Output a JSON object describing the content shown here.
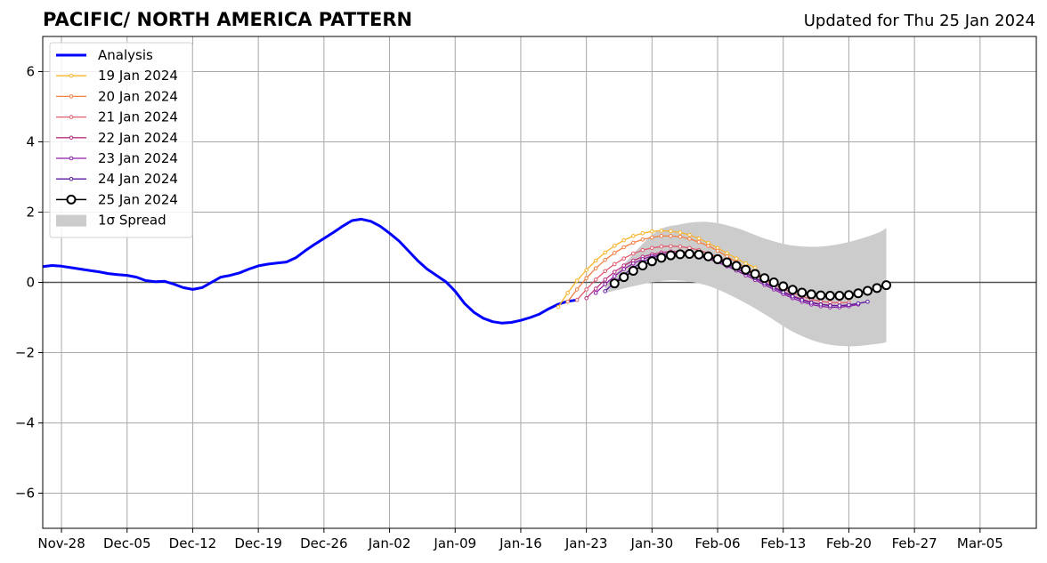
{
  "chart_data": {
    "type": "line",
    "title": "PACIFIC/ NORTH AMERICA PATTERN",
    "subtitle": "Updated for Thu 25 Jan 2024",
    "xlim": [
      "2023-11-26",
      "2024-03-11"
    ],
    "ylim": [
      -7,
      7
    ],
    "yticks": [
      -6,
      -4,
      -2,
      0,
      2,
      4,
      6
    ],
    "ytick_labels": [
      "−6",
      "−4",
      "−2",
      "0",
      "2",
      "4",
      "6"
    ],
    "xticks": [
      "2023-11-28",
      "2023-12-05",
      "2023-12-12",
      "2023-12-19",
      "2023-12-26",
      "2024-01-02",
      "2024-01-09",
      "2024-01-16",
      "2024-01-23",
      "2024-01-30",
      "2024-02-06",
      "2024-02-13",
      "2024-02-20",
      "2024-02-27",
      "2024-03-05"
    ],
    "xtick_labels": [
      "Nov-28",
      "Dec-05",
      "Dec-12",
      "Dec-19",
      "Dec-26",
      "Jan-02",
      "Jan-09",
      "Jan-16",
      "Jan-23",
      "Jan-30",
      "Feb-06",
      "Feb-13",
      "Feb-20",
      "Feb-27",
      "Mar-05"
    ],
    "grid": true,
    "legend_position": "upper-left",
    "spread": {
      "name": "1σ Spread",
      "color": "#cccccc",
      "x": [
        "2024-01-25",
        "2024-01-30",
        "2024-02-02",
        "2024-02-05",
        "2024-02-08",
        "2024-02-11",
        "2024-02-14",
        "2024-02-17",
        "2024-02-20",
        "2024-02-23",
        "2024-02-24"
      ],
      "upper": [
        -0.1,
        1.35,
        1.65,
        1.72,
        1.55,
        1.25,
        1.05,
        1.02,
        1.15,
        1.4,
        1.55
      ],
      "lower": [
        -0.3,
        0.0,
        0.05,
        -0.1,
        -0.45,
        -0.9,
        -1.4,
        -1.72,
        -1.82,
        -1.75,
        -1.7
      ]
    },
    "series": [
      {
        "name": "Analysis",
        "color": "#0000ff",
        "style": "analysis",
        "x": [
          "2023-11-26",
          "2023-11-27",
          "2023-11-28",
          "2023-11-29",
          "2023-11-30",
          "2023-12-01",
          "2023-12-02",
          "2023-12-03",
          "2023-12-04",
          "2023-12-05",
          "2023-12-06",
          "2023-12-07",
          "2023-12-08",
          "2023-12-09",
          "2023-12-10",
          "2023-12-11",
          "2023-12-12",
          "2023-12-13",
          "2023-12-14",
          "2023-12-15",
          "2023-12-16",
          "2023-12-17",
          "2023-12-18",
          "2023-12-19",
          "2023-12-20",
          "2023-12-21",
          "2023-12-22",
          "2023-12-23",
          "2023-12-24",
          "2023-12-25",
          "2023-12-26",
          "2023-12-27",
          "2023-12-28",
          "2023-12-29",
          "2023-12-30",
          "2023-12-31",
          "2024-01-01",
          "2024-01-02",
          "2024-01-03",
          "2024-01-04",
          "2024-01-05",
          "2024-01-06",
          "2024-01-07",
          "2024-01-08",
          "2024-01-09",
          "2024-01-10",
          "2024-01-11",
          "2024-01-12",
          "2024-01-13",
          "2024-01-14",
          "2024-01-15",
          "2024-01-16",
          "2024-01-17",
          "2024-01-18",
          "2024-01-19",
          "2024-01-20",
          "2024-01-21",
          "2024-01-22"
        ],
        "values": [
          0.45,
          0.48,
          0.46,
          0.42,
          0.38,
          0.34,
          0.3,
          0.25,
          0.22,
          0.2,
          0.15,
          0.05,
          0.02,
          0.03,
          -0.05,
          -0.15,
          -0.2,
          -0.15,
          0.0,
          0.15,
          0.2,
          0.27,
          0.38,
          0.47,
          0.52,
          0.55,
          0.58,
          0.7,
          0.9,
          1.08,
          1.25,
          1.42,
          1.6,
          1.76,
          1.8,
          1.74,
          1.6,
          1.4,
          1.18,
          0.9,
          0.62,
          0.38,
          0.2,
          0.02,
          -0.25,
          -0.6,
          -0.85,
          -1.02,
          -1.12,
          -1.16,
          -1.14,
          -1.08,
          -1.0,
          -0.9,
          -0.75,
          -0.62,
          -0.54,
          -0.5
        ]
      },
      {
        "name": "19 Jan 2024",
        "color": "#f9b42c",
        "x": [
          "2024-01-20",
          "2024-01-21",
          "2024-01-22",
          "2024-01-23",
          "2024-01-24",
          "2024-01-25",
          "2024-01-26",
          "2024-01-27",
          "2024-01-28",
          "2024-01-29",
          "2024-01-30",
          "2024-01-31",
          "2024-02-01",
          "2024-02-02",
          "2024-02-03",
          "2024-02-04",
          "2024-02-05",
          "2024-02-06",
          "2024-02-07",
          "2024-02-08",
          "2024-02-09",
          "2024-02-10"
        ],
        "values": [
          -0.7,
          -0.3,
          0.05,
          0.35,
          0.62,
          0.85,
          1.04,
          1.2,
          1.32,
          1.4,
          1.45,
          1.47,
          1.46,
          1.42,
          1.35,
          1.25,
          1.12,
          0.98,
          0.83,
          0.68,
          0.54,
          0.42
        ]
      },
      {
        "name": "20 Jan 2024",
        "color": "#f27f43",
        "x": [
          "2024-01-21",
          "2024-01-22",
          "2024-01-23",
          "2024-01-24",
          "2024-01-25",
          "2024-01-26",
          "2024-01-27",
          "2024-01-28",
          "2024-01-29",
          "2024-01-30",
          "2024-01-31",
          "2024-02-01",
          "2024-02-02",
          "2024-02-03",
          "2024-02-04",
          "2024-02-05",
          "2024-02-06",
          "2024-02-07",
          "2024-02-08",
          "2024-02-09",
          "2024-02-10",
          "2024-02-11"
        ],
        "values": [
          -0.55,
          -0.2,
          0.12,
          0.4,
          0.64,
          0.84,
          1.0,
          1.13,
          1.22,
          1.28,
          1.32,
          1.32,
          1.3,
          1.24,
          1.15,
          1.04,
          0.9,
          0.74,
          0.58,
          0.42,
          0.28,
          0.16
        ]
      },
      {
        "name": "21 Jan 2024",
        "color": "#e15b6c",
        "x": [
          "2024-01-22",
          "2024-01-23",
          "2024-01-24",
          "2024-01-25",
          "2024-01-26",
          "2024-01-27",
          "2024-01-28",
          "2024-01-29",
          "2024-01-30",
          "2024-01-31",
          "2024-02-01",
          "2024-02-02",
          "2024-02-03",
          "2024-02-04",
          "2024-02-05",
          "2024-02-06",
          "2024-02-07",
          "2024-02-08",
          "2024-02-09",
          "2024-02-10",
          "2024-02-11",
          "2024-02-12",
          "2024-02-13",
          "2024-02-14",
          "2024-02-15",
          "2024-02-16",
          "2024-02-17",
          "2024-02-18",
          "2024-02-19",
          "2024-02-20"
        ],
        "values": [
          -0.5,
          -0.2,
          0.08,
          0.32,
          0.52,
          0.68,
          0.82,
          0.92,
          0.98,
          1.02,
          1.03,
          1.02,
          0.98,
          0.92,
          0.83,
          0.72,
          0.6,
          0.47,
          0.33,
          0.2,
          0.07,
          -0.06,
          -0.18,
          -0.3,
          -0.4,
          -0.48,
          -0.54,
          -0.57,
          -0.58,
          -0.57
        ]
      },
      {
        "name": "22 Jan 2024",
        "color": "#b8327d",
        "x": [
          "2024-01-23",
          "2024-01-24",
          "2024-01-25",
          "2024-01-26",
          "2024-01-27",
          "2024-01-28",
          "2024-01-29",
          "2024-01-30",
          "2024-01-31",
          "2024-02-01",
          "2024-02-02",
          "2024-02-03",
          "2024-02-04",
          "2024-02-05",
          "2024-02-06",
          "2024-02-07",
          "2024-02-08",
          "2024-02-09",
          "2024-02-10",
          "2024-02-11",
          "2024-02-12",
          "2024-02-13",
          "2024-02-14",
          "2024-02-15",
          "2024-02-16",
          "2024-02-17",
          "2024-02-18",
          "2024-02-19",
          "2024-02-20"
        ],
        "values": [
          -0.45,
          -0.18,
          0.08,
          0.3,
          0.48,
          0.62,
          0.73,
          0.8,
          0.85,
          0.88,
          0.88,
          0.85,
          0.8,
          0.73,
          0.64,
          0.52,
          0.4,
          0.27,
          0.13,
          0.0,
          -0.13,
          -0.26,
          -0.38,
          -0.48,
          -0.56,
          -0.62,
          -0.65,
          -0.66,
          -0.66
        ]
      },
      {
        "name": "23 Jan 2024",
        "color": "#8e1ea8",
        "x": [
          "2024-01-24",
          "2024-01-25",
          "2024-01-26",
          "2024-01-27",
          "2024-01-28",
          "2024-01-29",
          "2024-01-30",
          "2024-01-31",
          "2024-02-01",
          "2024-02-02",
          "2024-02-03",
          "2024-02-04",
          "2024-02-05",
          "2024-02-06",
          "2024-02-07",
          "2024-02-08",
          "2024-02-09",
          "2024-02-10",
          "2024-02-11",
          "2024-02-12",
          "2024-02-13",
          "2024-02-14",
          "2024-02-15",
          "2024-02-16",
          "2024-02-17",
          "2024-02-18",
          "2024-02-19",
          "2024-02-20",
          "2024-02-21"
        ],
        "values": [
          -0.3,
          -0.05,
          0.18,
          0.38,
          0.54,
          0.66,
          0.75,
          0.8,
          0.83,
          0.83,
          0.8,
          0.75,
          0.67,
          0.57,
          0.46,
          0.34,
          0.2,
          0.07,
          -0.07,
          -0.2,
          -0.33,
          -0.45,
          -0.55,
          -0.63,
          -0.68,
          -0.71,
          -0.71,
          -0.68,
          -0.63
        ]
      },
      {
        "name": "24 Jan 2024",
        "color": "#5d1aa0",
        "x": [
          "2024-01-25",
          "2024-01-26",
          "2024-01-27",
          "2024-01-28",
          "2024-01-29",
          "2024-01-30",
          "2024-01-31",
          "2024-02-01",
          "2024-02-02",
          "2024-02-03",
          "2024-02-04",
          "2024-02-05",
          "2024-02-06",
          "2024-02-07",
          "2024-02-08",
          "2024-02-09",
          "2024-02-10",
          "2024-02-11",
          "2024-02-12",
          "2024-02-13",
          "2024-02-14",
          "2024-02-15",
          "2024-02-16",
          "2024-02-17",
          "2024-02-18",
          "2024-02-19",
          "2024-02-20",
          "2024-02-21",
          "2024-02-22"
        ],
        "values": [
          -0.25,
          0.0,
          0.22,
          0.42,
          0.58,
          0.7,
          0.78,
          0.82,
          0.83,
          0.82,
          0.78,
          0.71,
          0.62,
          0.51,
          0.39,
          0.26,
          0.12,
          -0.02,
          -0.15,
          -0.28,
          -0.4,
          -0.5,
          -0.58,
          -0.63,
          -0.66,
          -0.66,
          -0.64,
          -0.6,
          -0.55
        ]
      },
      {
        "name": "25 Jan 2024",
        "color": "#000000",
        "style": "current",
        "x": [
          "2024-01-26",
          "2024-01-27",
          "2024-01-28",
          "2024-01-29",
          "2024-01-30",
          "2024-01-31",
          "2024-02-01",
          "2024-02-02",
          "2024-02-03",
          "2024-02-04",
          "2024-02-05",
          "2024-02-06",
          "2024-02-07",
          "2024-02-08",
          "2024-02-09",
          "2024-02-10",
          "2024-02-11",
          "2024-02-12",
          "2024-02-13",
          "2024-02-14",
          "2024-02-15",
          "2024-02-16",
          "2024-02-17",
          "2024-02-18",
          "2024-02-19",
          "2024-02-20",
          "2024-02-21",
          "2024-02-22",
          "2024-02-23",
          "2024-02-24"
        ],
        "values": [
          -0.03,
          0.15,
          0.33,
          0.48,
          0.6,
          0.7,
          0.77,
          0.8,
          0.81,
          0.79,
          0.74,
          0.66,
          0.57,
          0.47,
          0.36,
          0.24,
          0.12,
          0.0,
          -0.11,
          -0.21,
          -0.29,
          -0.34,
          -0.37,
          -0.38,
          -0.38,
          -0.36,
          -0.31,
          -0.24,
          -0.16,
          -0.08
        ]
      }
    ]
  }
}
